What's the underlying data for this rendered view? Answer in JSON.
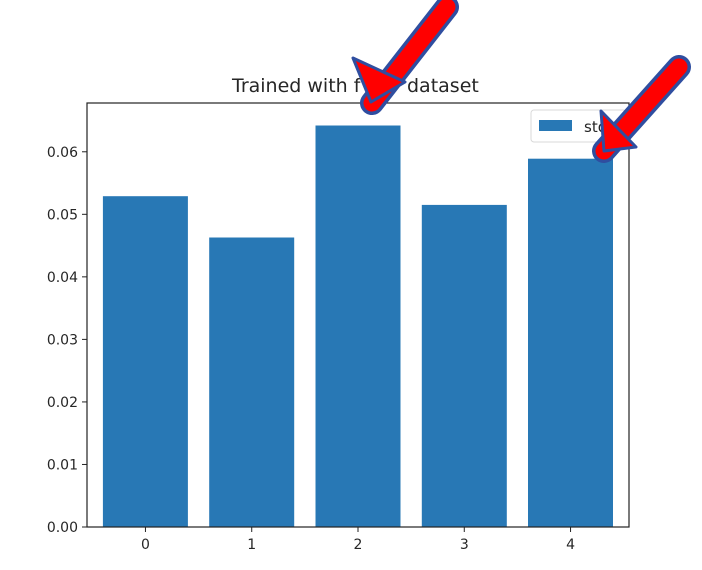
{
  "chart_data": {
    "type": "bar",
    "title": "Trained with full dataset",
    "title_visible_parts": [
      "Trained with f",
      "dataset"
    ],
    "categories": [
      "0",
      "1",
      "2",
      "3",
      "4"
    ],
    "series": [
      {
        "name": "std",
        "values": [
          0.0529,
          0.0463,
          0.0642,
          0.0515,
          0.0589
        ],
        "color": "#2878b5"
      }
    ],
    "legend_visible_text": "std",
    "ylim": [
      0,
      0.0678
    ],
    "yticks": [
      "0.00",
      "0.01",
      "0.02",
      "0.03",
      "0.04",
      "0.05",
      "0.06"
    ],
    "ytick_values": [
      0,
      0.01,
      0.02,
      0.03,
      0.04,
      0.05,
      0.06
    ],
    "grid": false,
    "legend_position": "top-right"
  },
  "annotations": {
    "arrow_color": "#ff0000",
    "arrow_outline": "#2f4ea0",
    "arrow_targets": [
      "bar-2",
      "legend"
    ]
  }
}
